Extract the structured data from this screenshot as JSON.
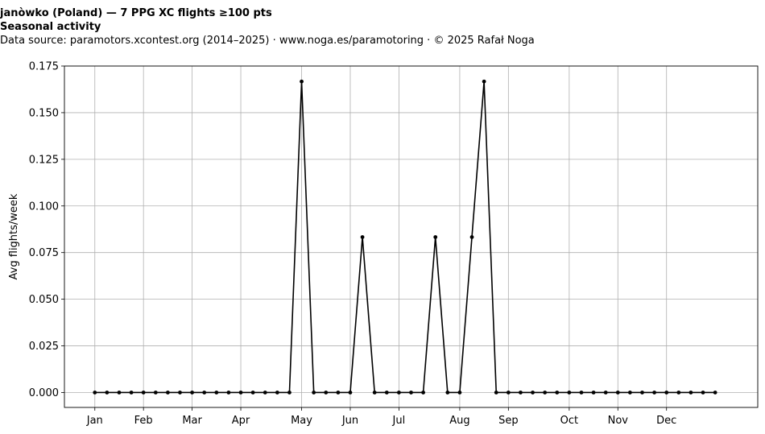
{
  "title": "janòwko (Poland)  —  7 PPG XC flights ≥100 pts",
  "subtitle": "Seasonal activity",
  "source_line": "Data source: paramotors.xcontest.org (2014–2025)  ·  www.noga.es/paramotoring  ·  © 2025 Rafał Noga",
  "chart_data": {
    "type": "line",
    "title": "janòwko (Poland)  —  7 PPG XC flights ≥100 pts",
    "subtitle": "Seasonal activity",
    "xlabel": "",
    "ylabel": "Avg flights/week",
    "xlim": [
      -2.5,
      54.5
    ],
    "ylim": [
      -0.008,
      0.175
    ],
    "y_ticks": [
      0.0,
      0.025,
      0.05,
      0.075,
      0.1,
      0.125,
      0.15,
      0.175
    ],
    "y_tick_labels": [
      "0.000",
      "0.025",
      "0.050",
      "0.075",
      "0.100",
      "0.125",
      "0.150",
      "0.175"
    ],
    "x_ticks": [
      0,
      4,
      8,
      12,
      17,
      21,
      25,
      30,
      34,
      39,
      43,
      47
    ],
    "x_tick_labels": [
      "Jan",
      "Feb",
      "Mar",
      "Apr",
      "May",
      "Jun",
      "Jul",
      "Aug",
      "Sep",
      "Oct",
      "Nov",
      "Dec"
    ],
    "grid": true,
    "series": [
      {
        "color": "#000000",
        "marker": "dot",
        "x": [
          0,
          1,
          2,
          3,
          4,
          5,
          6,
          7,
          8,
          9,
          10,
          11,
          12,
          13,
          14,
          15,
          16,
          17,
          18,
          19,
          20,
          21,
          22,
          23,
          24,
          25,
          26,
          27,
          28,
          29,
          30,
          31,
          32,
          33,
          34,
          35,
          36,
          37,
          38,
          39,
          40,
          41,
          42,
          43,
          44,
          45,
          46,
          47,
          48,
          49,
          50,
          51
        ],
        "values": [
          0,
          0,
          0,
          0,
          0,
          0,
          0,
          0,
          0,
          0,
          0,
          0,
          0,
          0,
          0,
          0,
          0,
          0.1667,
          0,
          0,
          0,
          0,
          0.0833,
          0,
          0,
          0,
          0,
          0,
          0.0833,
          0,
          0,
          0.0833,
          0.1667,
          0,
          0,
          0,
          0,
          0,
          0,
          0,
          0,
          0,
          0,
          0,
          0,
          0,
          0,
          0,
          0,
          0,
          0,
          0
        ]
      }
    ]
  }
}
